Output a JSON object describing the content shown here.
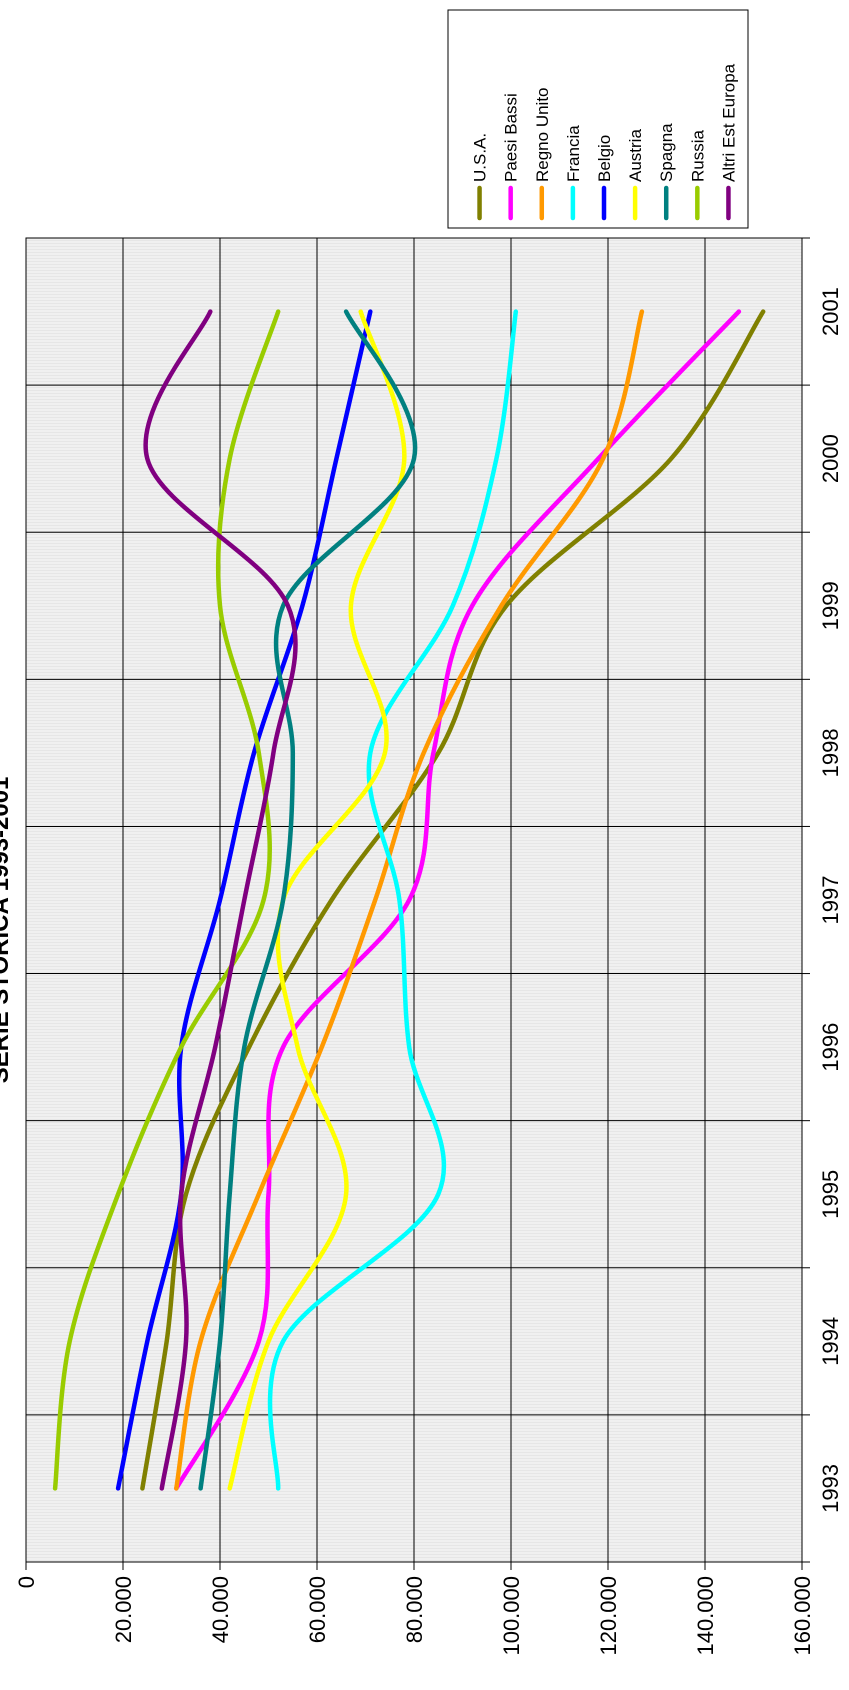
{
  "chart_data": {
    "type": "line",
    "title": "SERIE STORICA 1993-2001",
    "xlabel": "",
    "ylabel": "",
    "x_ticks": [
      "1993",
      "1994",
      "1995",
      "1996",
      "1997",
      "1998",
      "1999",
      "2000",
      "2001"
    ],
    "y_ticks": [
      "0",
      "20.000",
      "40.000",
      "60.000",
      "80.000",
      "100.000",
      "120.000",
      "140.000",
      "160.000"
    ],
    "ylim": [
      0,
      160000
    ],
    "xlim": [
      1992.5,
      2001.5
    ],
    "grid": true,
    "legend_position": "top-right",
    "orientation": "rotated 90° counter-clockwise",
    "series": [
      {
        "name": "U.S.A.",
        "color": "#808000",
        "x": [
          1993,
          1994,
          1995,
          1996,
          1997,
          1998,
          1999,
          2000,
          2001
        ],
        "values": [
          24000,
          29000,
          33000,
          46000,
          63000,
          85000,
          99000,
          133000,
          152000
        ]
      },
      {
        "name": "Paesi Bassi",
        "color": "#ff00ff",
        "x": [
          1993,
          1994,
          1995,
          1996,
          1997,
          1998,
          1999,
          2000,
          2001
        ],
        "values": [
          31000,
          48000,
          50000,
          53000,
          79000,
          84000,
          92000,
          118000,
          147000
        ]
      },
      {
        "name": "Regno Unito",
        "color": "#ff9900",
        "x": [
          1993,
          1994,
          1995,
          1996,
          1997,
          1998,
          1999,
          2000,
          2001
        ],
        "values": [
          31000,
          36000,
          48000,
          61000,
          72000,
          82000,
          98000,
          119000,
          127000
        ]
      },
      {
        "name": "Francia",
        "color": "#00ffff",
        "x": [
          1993,
          1994,
          1995,
          1996,
          1997,
          1998,
          1999,
          2000,
          2001
        ],
        "values": [
          52000,
          53000,
          85000,
          79000,
          77000,
          71000,
          88000,
          97000,
          101000
        ]
      },
      {
        "name": "Belgio",
        "color": "#0000ff",
        "x": [
          1993,
          1994,
          1995,
          1996,
          1997,
          1998,
          1999,
          2000,
          2001
        ],
        "values": [
          19000,
          25000,
          32000,
          32000,
          40000,
          47000,
          57000,
          64000,
          71000
        ]
      },
      {
        "name": "Austria",
        "color": "#ffff00",
        "x": [
          1993,
          1994,
          1995,
          1996,
          1997,
          1998,
          1999,
          2000,
          2001
        ],
        "values": [
          42000,
          50000,
          66000,
          56000,
          53000,
          74000,
          67000,
          78000,
          69000
        ]
      },
      {
        "name": "Spagna",
        "color": "#008080",
        "x": [
          1993,
          1994,
          1995,
          1996,
          1997,
          1998,
          1999,
          2000,
          2001
        ],
        "values": [
          36000,
          40000,
          42000,
          45000,
          53000,
          55000,
          53000,
          80000,
          66000
        ]
      },
      {
        "name": "Russia",
        "color": "#99cc00",
        "x": [
          1993,
          1994,
          1995,
          1996,
          1997,
          1998,
          1999,
          2000,
          2001
        ],
        "values": [
          6000,
          9000,
          19000,
          32000,
          49000,
          48000,
          40000,
          42000,
          52000
        ]
      },
      {
        "name": "Altri Est Europa",
        "color": "#800080",
        "x": [
          1993,
          1994,
          1995,
          1996,
          1997,
          1998,
          1999,
          2000,
          2001
        ],
        "values": [
          28000,
          33000,
          32000,
          39000,
          45000,
          51000,
          54000,
          25000,
          38000
        ]
      }
    ]
  }
}
